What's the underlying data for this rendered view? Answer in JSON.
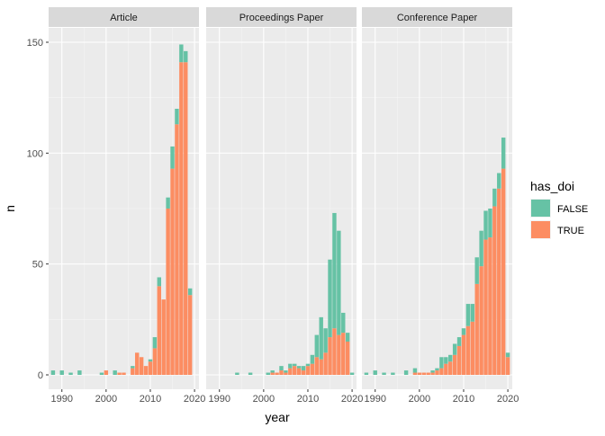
{
  "chart_data": {
    "type": "bar",
    "stacked": true,
    "facets": [
      "Article",
      "Proceedings Paper",
      "Conference Paper"
    ],
    "xlabel": "year",
    "ylabel": "n",
    "xlim": [
      1987,
      2021
    ],
    "ylim": [
      0,
      155
    ],
    "x_ticks": [
      1990,
      2000,
      2010,
      2020
    ],
    "y_ticks": [
      0,
      50,
      100,
      150
    ],
    "legend": {
      "title": "has_doi",
      "position": "right",
      "entries": [
        {
          "label": "FALSE",
          "color": "#66c2a5"
        },
        {
          "label": "TRUE",
          "color": "#fc8d62"
        }
      ]
    },
    "grid": true,
    "panels": [
      {
        "facet": "Article",
        "years": [
          1988,
          1990,
          1992,
          1994,
          1999,
          2000,
          2002,
          2003,
          2004,
          2006,
          2007,
          2008,
          2009,
          2010,
          2011,
          2012,
          2013,
          2014,
          2015,
          2016,
          2017,
          2018,
          2019,
          2020
        ],
        "true_values": [
          0,
          0,
          0,
          0,
          0,
          2,
          0,
          1,
          1,
          3,
          10,
          8,
          4,
          6,
          12,
          40,
          34,
          75,
          93,
          113,
          141,
          141,
          36,
          0
        ],
        "false_values": [
          2,
          2,
          1,
          2,
          1,
          0,
          2,
          0,
          0,
          1,
          0,
          0,
          0,
          1,
          5,
          4,
          0,
          5,
          10,
          7,
          8,
          5,
          3,
          0
        ]
      },
      {
        "facet": "Proceedings Paper",
        "years": [
          1994,
          1997,
          2000,
          2001,
          2002,
          2003,
          2004,
          2005,
          2006,
          2007,
          2008,
          2009,
          2010,
          2011,
          2012,
          2013,
          2014,
          2015,
          2016,
          2017,
          2018,
          2019,
          2020
        ],
        "true_values": [
          0,
          0,
          0,
          0,
          1,
          1,
          2,
          1,
          3,
          4,
          3,
          2,
          4,
          5,
          8,
          7,
          10,
          17,
          21,
          18,
          19,
          15,
          0
        ],
        "false_values": [
          1,
          1,
          0,
          1,
          1,
          0,
          2,
          1,
          2,
          1,
          1,
          2,
          1,
          4,
          10,
          19,
          11,
          35,
          52,
          47,
          9,
          4,
          1
        ]
      },
      {
        "facet": "Conference Paper",
        "years": [
          1988,
          1990,
          1992,
          1994,
          1997,
          1999,
          2000,
          2001,
          2002,
          2003,
          2004,
          2005,
          2006,
          2007,
          2008,
          2009,
          2010,
          2011,
          2012,
          2013,
          2014,
          2015,
          2016,
          2017,
          2018,
          2019,
          2020
        ],
        "true_values": [
          0,
          0,
          0,
          0,
          0,
          1,
          1,
          1,
          1,
          1,
          2,
          3,
          5,
          6,
          9,
          13,
          18,
          22,
          24,
          41,
          49,
          61,
          62,
          76,
          84,
          93,
          8
        ],
        "false_values": [
          1,
          2,
          1,
          1,
          2,
          2,
          0,
          0,
          0,
          1,
          1,
          5,
          3,
          3,
          5,
          4,
          3,
          10,
          8,
          12,
          16,
          13,
          13,
          8,
          7,
          14,
          2
        ]
      }
    ]
  }
}
